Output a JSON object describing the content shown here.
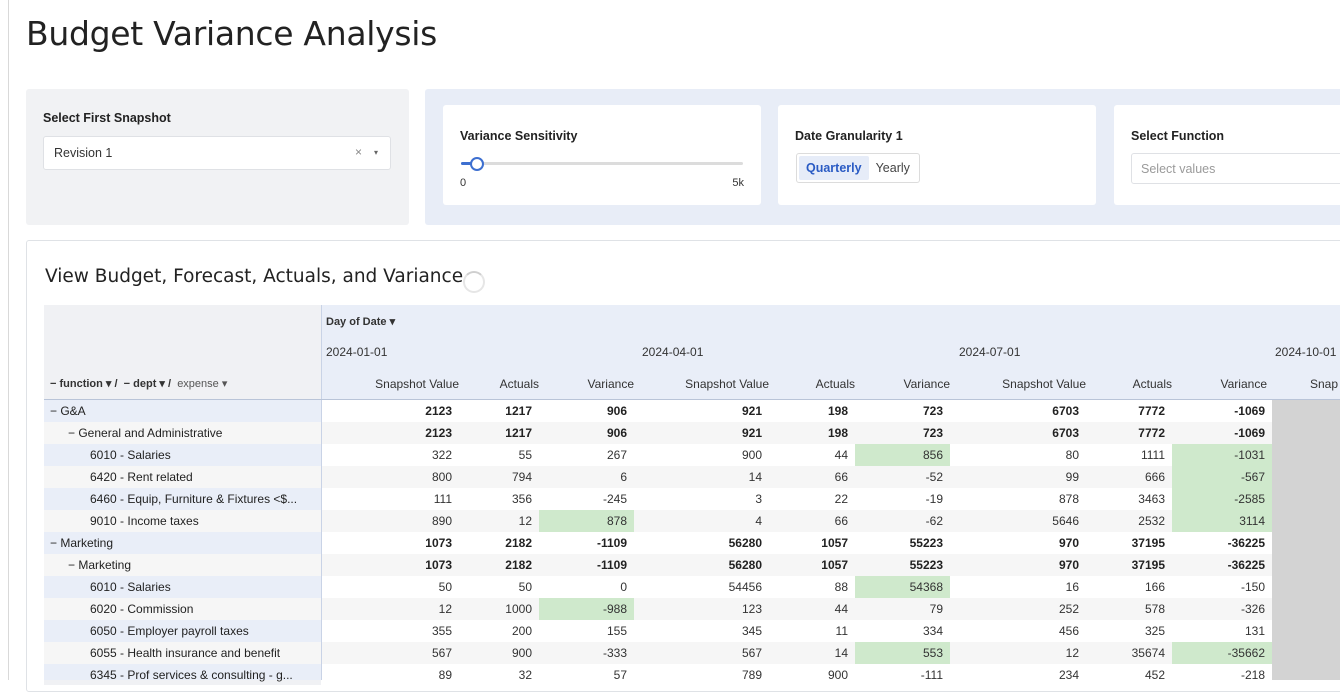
{
  "page": {
    "title": "Budget Variance Analysis"
  },
  "controls": {
    "snapshot": {
      "label": "Select First Snapshot",
      "value": "Revision 1",
      "clear_icon": "×",
      "caret_icon": "▾"
    },
    "sensitivity": {
      "label": "Variance Sensitivity",
      "min_label": "0",
      "max_label": "5k",
      "value_fraction": 0.05
    },
    "granularity": {
      "label": "Date Granularity 1",
      "options": [
        "Quarterly",
        "Yearly"
      ],
      "selected": "Quarterly"
    },
    "function": {
      "label": "Select Function",
      "placeholder": "Select values"
    }
  },
  "section": {
    "title": "View Budget, Forecast, Actuals, and Variance"
  },
  "table": {
    "date_field": "Day of Date ▾",
    "pivot_header": {
      "function": "− function ▾ /",
      "dept": "− dept ▾ /",
      "expense": "expense ▾"
    },
    "dates": [
      "2024-01-01",
      "2024-04-01",
      "2024-07-01",
      "2024-10-01"
    ],
    "columns": [
      "Snapshot Value",
      "Actuals",
      "Variance",
      "Snapshot Value",
      "Actuals",
      "Variance",
      "Snapshot Value",
      "Actuals",
      "Variance",
      "Snap"
    ],
    "highlight_color": "#cfe9cc",
    "rows": [
      {
        "label": "− G&A",
        "level": 0,
        "bold": true,
        "cells": [
          "2123",
          "1217",
          "906",
          "921",
          "198",
          "723",
          "6703",
          "7772",
          "-1069"
        ],
        "hl": []
      },
      {
        "label": "− General and Administrative",
        "level": 1,
        "bold": true,
        "cells": [
          "2123",
          "1217",
          "906",
          "921",
          "198",
          "723",
          "6703",
          "7772",
          "-1069"
        ],
        "hl": []
      },
      {
        "label": "6010 - Salaries",
        "level": 2,
        "bold": false,
        "cells": [
          "322",
          "55",
          "267",
          "900",
          "44",
          "856",
          "80",
          "1111",
          "-1031"
        ],
        "hl": [
          5,
          8
        ]
      },
      {
        "label": "6420 - Rent related",
        "level": 2,
        "bold": false,
        "cells": [
          "800",
          "794",
          "6",
          "14",
          "66",
          "-52",
          "99",
          "666",
          "-567"
        ],
        "hl": [
          8
        ]
      },
      {
        "label": "6460 - Equip, Furniture & Fixtures <$...",
        "level": 2,
        "bold": false,
        "cells": [
          "111",
          "356",
          "-245",
          "3",
          "22",
          "-19",
          "878",
          "3463",
          "-2585"
        ],
        "hl": [
          8
        ]
      },
      {
        "label": "9010 - Income taxes",
        "level": 2,
        "bold": false,
        "cells": [
          "890",
          "12",
          "878",
          "4",
          "66",
          "-62",
          "5646",
          "2532",
          "3114"
        ],
        "hl": [
          2,
          8
        ]
      },
      {
        "label": "− Marketing",
        "level": 0,
        "bold": true,
        "cells": [
          "1073",
          "2182",
          "-1109",
          "56280",
          "1057",
          "55223",
          "970",
          "37195",
          "-36225"
        ],
        "hl": []
      },
      {
        "label": "− Marketing",
        "level": 1,
        "bold": true,
        "cells": [
          "1073",
          "2182",
          "-1109",
          "56280",
          "1057",
          "55223",
          "970",
          "37195",
          "-36225"
        ],
        "hl": []
      },
      {
        "label": "6010 - Salaries",
        "level": 2,
        "bold": false,
        "cells": [
          "50",
          "50",
          "0",
          "54456",
          "88",
          "54368",
          "16",
          "166",
          "-150"
        ],
        "hl": [
          5
        ]
      },
      {
        "label": "6020 - Commission",
        "level": 2,
        "bold": false,
        "cells": [
          "12",
          "1000",
          "-988",
          "123",
          "44",
          "79",
          "252",
          "578",
          "-326"
        ],
        "hl": [
          2
        ]
      },
      {
        "label": "6050 - Employer payroll taxes",
        "level": 2,
        "bold": false,
        "cells": [
          "355",
          "200",
          "155",
          "345",
          "11",
          "334",
          "456",
          "325",
          "131"
        ],
        "hl": []
      },
      {
        "label": "6055 - Health insurance and benefit",
        "level": 2,
        "bold": false,
        "cells": [
          "567",
          "900",
          "-333",
          "567",
          "14",
          "553",
          "12",
          "35674",
          "-35662"
        ],
        "hl": [
          5,
          8
        ]
      },
      {
        "label": "6345 - Prof services & consulting - g...",
        "level": 2,
        "bold": false,
        "cells": [
          "89",
          "32",
          "57",
          "789",
          "900",
          "-111",
          "234",
          "452",
          "-218"
        ],
        "hl": []
      }
    ]
  }
}
